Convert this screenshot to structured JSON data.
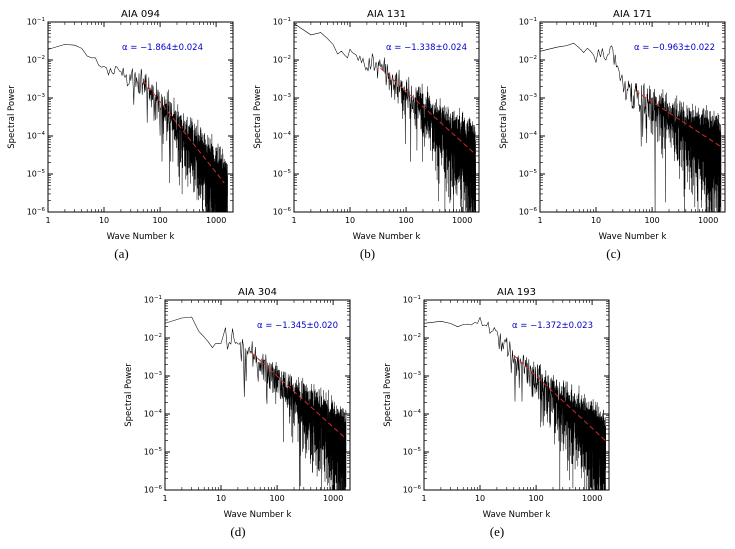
{
  "figure": {
    "panels": [
      {
        "sublabel": "(a)"
      },
      {
        "sublabel": "(b)"
      },
      {
        "sublabel": "(c)"
      },
      {
        "sublabel": "(d)"
      },
      {
        "sublabel": "(e)"
      }
    ]
  },
  "chart_data": [
    {
      "panel": "a",
      "type": "line",
      "title": "AIA 094",
      "xlabel": "Wave Number k",
      "ylabel": "Spectral Power",
      "x_scale": "log",
      "y_scale": "log",
      "xlim": [
        1,
        2000
      ],
      "ylim": [
        1e-06,
        0.1
      ],
      "x_ticks": [
        1,
        10,
        100,
        1000
      ],
      "y_tick_exponents": [
        -6,
        -5,
        -4,
        -3,
        -2,
        -1
      ],
      "grid": false,
      "fit": {
        "alpha": -1.864,
        "error": 0.024,
        "anchor_k": 100,
        "anchor_y": 0.0008,
        "k_range": [
          50,
          1400
        ],
        "color": "#d42a2a",
        "style": "dashed"
      },
      "annotation": {
        "text": "α = −1.864±0.024",
        "color": "#0000cd",
        "offset": [
          -30,
          28
        ]
      },
      "spectrum": {
        "color": "#000000",
        "k_max": 1600,
        "noise_seed": 11,
        "envelope": [
          [
            1,
            0.02
          ],
          [
            2.5,
            0.03
          ],
          [
            4,
            0.022
          ],
          [
            8,
            0.008
          ],
          [
            20,
            0.005
          ],
          [
            50,
            0.0029
          ],
          [
            1600,
            4.6e-06
          ]
        ]
      }
    },
    {
      "panel": "b",
      "type": "line",
      "title": "AIA 131",
      "xlabel": "Wave Number k",
      "ylabel": "Spectral Power",
      "x_scale": "log",
      "y_scale": "log",
      "xlim": [
        1,
        2000
      ],
      "ylim": [
        1e-06,
        0.1
      ],
      "x_ticks": [
        1,
        10,
        100,
        1000
      ],
      "y_tick_exponents": [
        -6,
        -5,
        -4,
        -3,
        -2,
        -1
      ],
      "grid": false,
      "fit": {
        "alpha": -1.338,
        "error": 0.024,
        "anchor_k": 100,
        "anchor_y": 0.0015,
        "k_range": [
          35,
          1750
        ],
        "color": "#d42a2a",
        "style": "dashed"
      },
      "annotation": {
        "text": "α = −1.338±0.024",
        "color": "#0000cd",
        "offset": [
          -12,
          28
        ]
      },
      "spectrum": {
        "color": "#000000",
        "k_max": 1750,
        "noise_seed": 22,
        "envelope": [
          [
            1,
            0.1
          ],
          [
            1.5,
            0.04
          ],
          [
            3,
            0.05
          ],
          [
            6,
            0.02
          ],
          [
            12,
            0.012
          ],
          [
            35,
            0.0061
          ],
          [
            1750,
            3.3e-05
          ]
        ]
      }
    },
    {
      "panel": "c",
      "type": "line",
      "title": "AIA 171",
      "xlabel": "Wave Number k",
      "ylabel": "Spectral Power",
      "x_scale": "log",
      "y_scale": "log",
      "xlim": [
        1,
        2000
      ],
      "ylim": [
        1e-06,
        0.1
      ],
      "x_ticks": [
        1,
        10,
        100,
        1000
      ],
      "y_tick_exponents": [
        -6,
        -5,
        -4,
        -3,
        -2,
        -1
      ],
      "grid": false,
      "fit": {
        "alpha": -0.963,
        "error": 0.022,
        "anchor_k": 100,
        "anchor_y": 0.0008,
        "k_range": [
          50,
          1700
        ],
        "color": "#d42a2a",
        "style": "dashed"
      },
      "annotation": {
        "text": "α = −0.963±0.022",
        "color": "#0000cd",
        "offset": [
          -10,
          28
        ]
      },
      "spectrum": {
        "color": "#000000",
        "k_max": 1700,
        "noise_seed": 33,
        "envelope": [
          [
            1,
            0.018
          ],
          [
            2.5,
            0.028
          ],
          [
            6,
            0.02
          ],
          [
            20,
            0.017
          ],
          [
            35,
            0.0022
          ],
          [
            50,
            0.00156
          ],
          [
            1700,
            5.2e-05
          ]
        ]
      }
    },
    {
      "panel": "d",
      "type": "line",
      "title": "AIA 304",
      "xlabel": "Wave Number k",
      "ylabel": "Spectral Power",
      "x_scale": "log",
      "y_scale": "log",
      "xlim": [
        1,
        2000
      ],
      "ylim": [
        1e-06,
        0.1
      ],
      "x_ticks": [
        1,
        10,
        100,
        1000
      ],
      "y_tick_exponents": [
        -6,
        -5,
        -4,
        -3,
        -2,
        -1
      ],
      "grid": false,
      "fit": {
        "alpha": -1.345,
        "error": 0.02,
        "anchor_k": 100,
        "anchor_y": 0.001,
        "k_range": [
          35,
          1650
        ],
        "color": "#d42a2a",
        "style": "dashed"
      },
      "annotation": {
        "text": "α = −1.345±0.020",
        "color": "#0000cd",
        "offset": [
          -12,
          28
        ]
      },
      "spectrum": {
        "color": "#000000",
        "k_max": 1700,
        "noise_seed": 44,
        "envelope": [
          [
            1,
            0.03
          ],
          [
            3,
            0.032
          ],
          [
            7,
            0.006
          ],
          [
            13,
            0.014
          ],
          [
            35,
            0.0041
          ],
          [
            1700,
            2.2e-05
          ]
        ]
      }
    },
    {
      "panel": "e",
      "type": "line",
      "title": "AIA 193",
      "xlabel": "Wave Number k",
      "ylabel": "Spectral Power",
      "x_scale": "log",
      "y_scale": "log",
      "xlim": [
        1,
        2000
      ],
      "ylim": [
        1e-06,
        0.1
      ],
      "x_ticks": [
        1,
        10,
        100,
        1000
      ],
      "y_tick_exponents": [
        -6,
        -5,
        -4,
        -3,
        -2,
        -1
      ],
      "grid": false,
      "fit": {
        "alpha": -1.372,
        "error": 0.023,
        "anchor_k": 100,
        "anchor_y": 0.001,
        "k_range": [
          40,
          1750
        ],
        "color": "#d42a2a",
        "style": "dashed"
      },
      "annotation": {
        "text": "α = −1.372±0.023",
        "color": "#0000cd",
        "offset": [
          -16,
          28
        ]
      },
      "spectrum": {
        "color": "#000000",
        "k_max": 1750,
        "noise_seed": 55,
        "envelope": [
          [
            1,
            0.025
          ],
          [
            2,
            0.035
          ],
          [
            5,
            0.02
          ],
          [
            10,
            0.028
          ],
          [
            20,
            0.012
          ],
          [
            40,
            0.0035
          ],
          [
            1750,
            2e-05
          ]
        ]
      }
    }
  ]
}
